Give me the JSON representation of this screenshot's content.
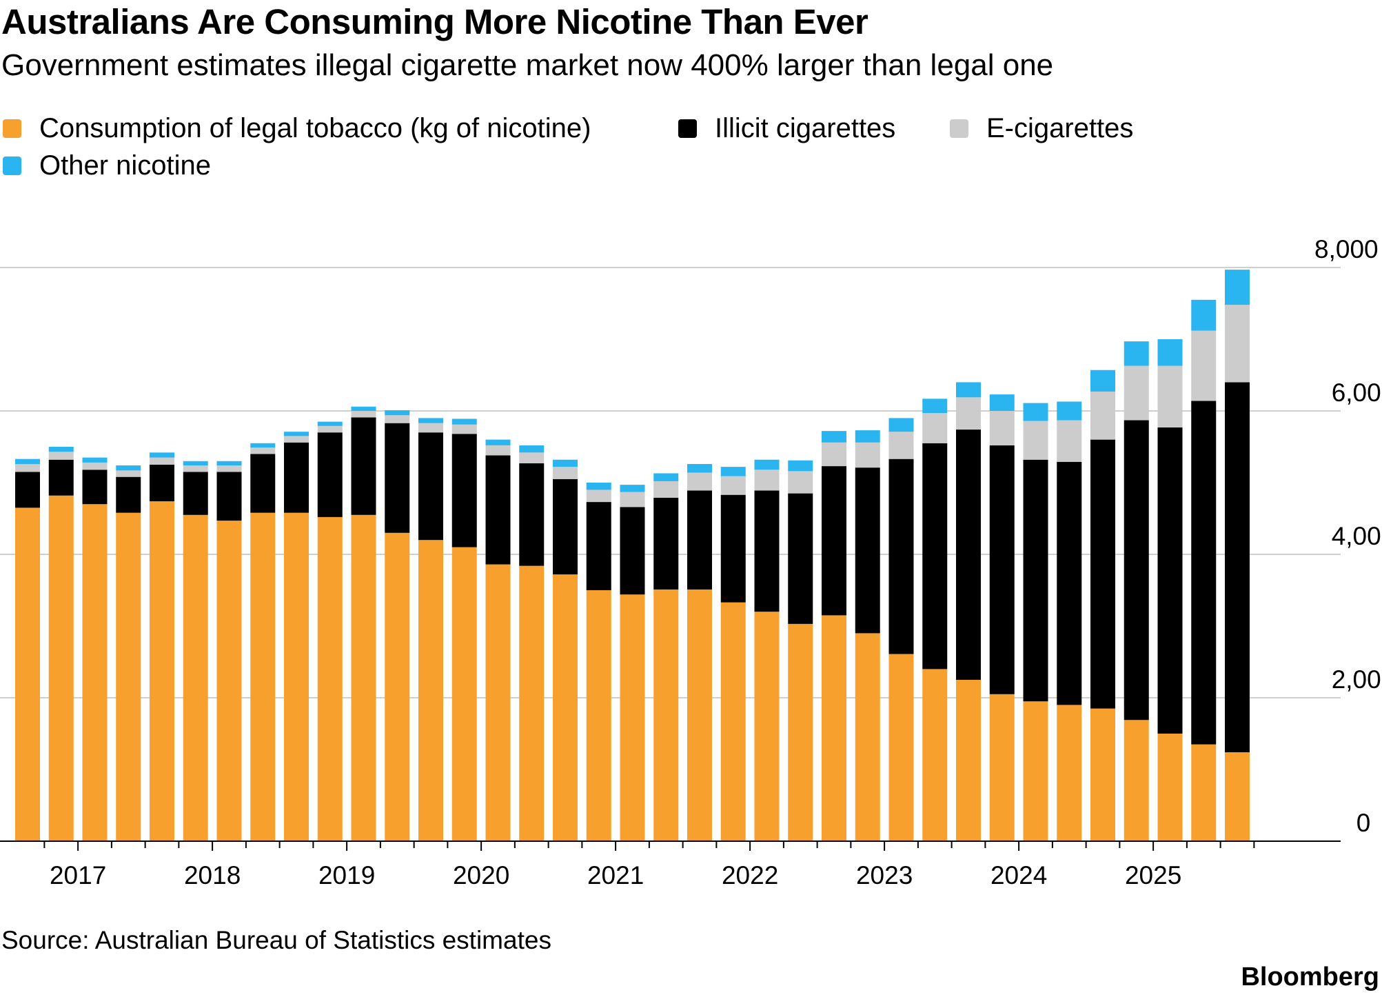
{
  "title": "Australians Are Consuming More Nicotine Than Ever",
  "subtitle": "Government estimates illegal cigarette market now 400% larger than legal one",
  "legend": [
    {
      "label": "Consumption of legal tobacco (kg of nicotine)",
      "color": "#f7a02d"
    },
    {
      "label": "Illicit cigarettes",
      "color": "#000000"
    },
    {
      "label": "E-cigarettes",
      "color": "#cccccc"
    },
    {
      "label": "Other nicotine",
      "color": "#2ab5f0"
    }
  ],
  "source": "Source: Australian Bureau of Statistics estimates",
  "brand": "Bloomberg",
  "chart_data": {
    "type": "bar",
    "stacked": true,
    "frequency": "quarterly",
    "x_tick_labels": [
      "2017",
      "2018",
      "2019",
      "2020",
      "2021",
      "2022",
      "2023",
      "2024",
      "2025"
    ],
    "y_ticks": [
      {
        "value": 0,
        "label": "0"
      },
      {
        "value": 2000,
        "label": "2,000"
      },
      {
        "value": 4000,
        "label": "4,000"
      },
      {
        "value": 6000,
        "label": "6,000"
      },
      {
        "value": 8000,
        "label": "8,000 kg"
      }
    ],
    "ylim": [
      0,
      8000
    ],
    "grid": true,
    "y_axis_position": "right",
    "series": [
      {
        "name": "Consumption of legal tobacco (kg of nicotine)",
        "color": "#f7a02d",
        "values": [
          4650,
          4820,
          4700,
          4580,
          4740,
          4550,
          4470,
          4580,
          4580,
          4520,
          4550,
          4300,
          4200,
          4100,
          3860,
          3840,
          3720,
          3500,
          3440,
          3510,
          3510,
          3330,
          3200,
          3030,
          3150,
          2900,
          2610,
          2400,
          2250,
          2050,
          1950,
          1900,
          1850,
          1690,
          1500,
          1350,
          1240
        ]
      },
      {
        "name": "Illicit cigarettes",
        "color": "#000000",
        "values": [
          500,
          500,
          480,
          500,
          510,
          600,
          680,
          820,
          980,
          1180,
          1360,
          1530,
          1500,
          1580,
          1520,
          1430,
          1330,
          1230,
          1220,
          1280,
          1380,
          1500,
          1690,
          1820,
          2080,
          2310,
          2720,
          3150,
          3490,
          3470,
          3370,
          3390,
          3750,
          4180,
          4270,
          4790,
          5160
        ]
      },
      {
        "name": "E-cigarettes",
        "color": "#cccccc",
        "values": [
          110,
          110,
          100,
          90,
          100,
          90,
          90,
          90,
          90,
          90,
          90,
          110,
          130,
          130,
          140,
          150,
          170,
          170,
          210,
          230,
          250,
          260,
          290,
          310,
          330,
          350,
          380,
          420,
          450,
          480,
          540,
          580,
          670,
          760,
          860,
          980,
          1080
        ]
      },
      {
        "name": "Other nicotine",
        "color": "#2ab5f0",
        "values": [
          70,
          70,
          70,
          70,
          70,
          60,
          60,
          60,
          60,
          60,
          60,
          70,
          70,
          80,
          80,
          100,
          100,
          100,
          100,
          110,
          120,
          130,
          140,
          150,
          160,
          170,
          190,
          200,
          210,
          230,
          250,
          260,
          300,
          340,
          370,
          430,
          490
        ]
      }
    ]
  }
}
